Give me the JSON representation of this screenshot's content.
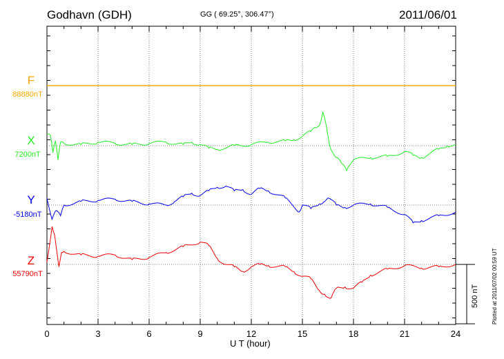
{
  "header": {
    "station": "Godhavn (GDH)",
    "coords": "GG ( 69.25°, 306.47°)",
    "date": "2011/06/01"
  },
  "footer": {
    "plotted": "Plotted at 2011/07/02 00:59 UT",
    "scale_label": "500 nT"
  },
  "colors": {
    "F": "#ffaa00",
    "X": "#22ee22",
    "Y": "#0000ee",
    "Z": "#ee0000"
  },
  "chart_data": {
    "type": "line",
    "title": "",
    "xlabel": "U T (hour)",
    "ylabel": "",
    "xlim": [
      0,
      24
    ],
    "x_ticks": [
      0,
      3,
      6,
      9,
      12,
      15,
      18,
      21,
      24
    ],
    "scale_bar_nT": 500,
    "series": [
      {
        "name": "F",
        "baseline_label": "88880nT",
        "color": "#ffaa00",
        "points": [
          [
            0,
            0
          ],
          [
            24,
            0
          ]
        ]
      },
      {
        "name": "X",
        "baseline_label": "7200nT",
        "color": "#22ee22",
        "points": [
          [
            0,
            100
          ],
          [
            0.2,
            90
          ],
          [
            0.35,
            -60
          ],
          [
            0.5,
            40
          ],
          [
            0.65,
            -120
          ],
          [
            0.8,
            30
          ],
          [
            1,
            20
          ],
          [
            2,
            10
          ],
          [
            3,
            30
          ],
          [
            4,
            20
          ],
          [
            5,
            10
          ],
          [
            6,
            20
          ],
          [
            7,
            30
          ],
          [
            8,
            10
          ],
          [
            8.5,
            30
          ],
          [
            9,
            10
          ],
          [
            9.5,
            -20
          ],
          [
            10,
            -30
          ],
          [
            11,
            0
          ],
          [
            12,
            10
          ],
          [
            13,
            30
          ],
          [
            14,
            40
          ],
          [
            14.5,
            50
          ],
          [
            15,
            80
          ],
          [
            15.5,
            120
          ],
          [
            15.8,
            150
          ],
          [
            16,
            170
          ],
          [
            16.2,
            280
          ],
          [
            16.4,
            170
          ],
          [
            16.6,
            0
          ],
          [
            17,
            -100
          ],
          [
            17.3,
            -150
          ],
          [
            17.6,
            -210
          ],
          [
            18,
            -120
          ],
          [
            19,
            -100
          ],
          [
            20,
            -90
          ],
          [
            21,
            -50
          ],
          [
            21.5,
            -80
          ],
          [
            22,
            -100
          ],
          [
            23,
            -30
          ],
          [
            23.5,
            0
          ],
          [
            24,
            10
          ]
        ]
      },
      {
        "name": "Y",
        "baseline_label": "-5180nT",
        "color": "#0000ee",
        "points": [
          [
            0,
            60
          ],
          [
            0.3,
            -120
          ],
          [
            0.5,
            -50
          ],
          [
            0.8,
            -90
          ],
          [
            1,
            0
          ],
          [
            2,
            30
          ],
          [
            3,
            40
          ],
          [
            4,
            50
          ],
          [
            5,
            30
          ],
          [
            6,
            10
          ],
          [
            7,
            0
          ],
          [
            7.5,
            30
          ],
          [
            8,
            70
          ],
          [
            8.5,
            100
          ],
          [
            9,
            80
          ],
          [
            9.5,
            120
          ],
          [
            10,
            150
          ],
          [
            10.5,
            160
          ],
          [
            11,
            120
          ],
          [
            11.5,
            130
          ],
          [
            12,
            90
          ],
          [
            12.5,
            140
          ],
          [
            13,
            120
          ],
          [
            14,
            60
          ],
          [
            14.8,
            -60
          ],
          [
            15,
            0
          ],
          [
            15.5,
            -30
          ],
          [
            16,
            10
          ],
          [
            16.5,
            60
          ],
          [
            17,
            0
          ],
          [
            17.5,
            -20
          ],
          [
            18,
            0
          ],
          [
            19,
            10
          ],
          [
            20,
            -20
          ],
          [
            21,
            -80
          ],
          [
            21.5,
            -150
          ],
          [
            22,
            -130
          ],
          [
            23,
            -90
          ],
          [
            24,
            -60
          ]
        ]
      },
      {
        "name": "Z",
        "baseline_label": "55790nT",
        "color": "#ee0000",
        "points": [
          [
            0,
            20
          ],
          [
            0.3,
            320
          ],
          [
            0.45,
            250
          ],
          [
            0.7,
            -20
          ],
          [
            0.85,
            100
          ],
          [
            1,
            110
          ],
          [
            2,
            80
          ],
          [
            3,
            70
          ],
          [
            4,
            80
          ],
          [
            5,
            40
          ],
          [
            6,
            60
          ],
          [
            7,
            100
          ],
          [
            8,
            150
          ],
          [
            9,
            190
          ],
          [
            9.5,
            160
          ],
          [
            10,
            50
          ],
          [
            10.5,
            0
          ],
          [
            11,
            -20
          ],
          [
            11.5,
            -60
          ],
          [
            12,
            -20
          ],
          [
            12.5,
            0
          ],
          [
            13,
            -10
          ],
          [
            14,
            -20
          ],
          [
            14.5,
            -60
          ],
          [
            15,
            -100
          ],
          [
            15.5,
            -120
          ],
          [
            16,
            -220
          ],
          [
            16.3,
            -250
          ],
          [
            16.7,
            -280
          ],
          [
            17,
            -200
          ],
          [
            17.5,
            -190
          ],
          [
            18,
            -200
          ],
          [
            18.5,
            -150
          ],
          [
            19,
            -90
          ],
          [
            20,
            -40
          ],
          [
            21,
            -10
          ],
          [
            22,
            -30
          ],
          [
            23,
            -20
          ],
          [
            24,
            0
          ]
        ]
      }
    ]
  }
}
